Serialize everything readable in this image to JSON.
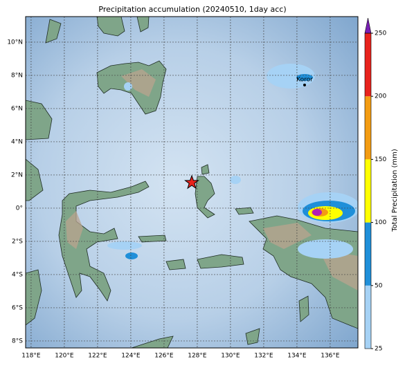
{
  "title": "Precipitation accumulation (20240510, 1day acc)",
  "map": {
    "lon_range": [
      117.67,
      137.67
    ],
    "lat_range": [
      -8.42,
      11.54
    ],
    "lon_ticks": [
      {
        "value": 118,
        "label": "118°E"
      },
      {
        "value": 120,
        "label": "120°E"
      },
      {
        "value": 122,
        "label": "122°E"
      },
      {
        "value": 124,
        "label": "124°E"
      },
      {
        "value": 126,
        "label": "126°E"
      },
      {
        "value": 128,
        "label": "128°E"
      },
      {
        "value": 130,
        "label": "130°E"
      },
      {
        "value": 132,
        "label": "132°E"
      },
      {
        "value": 134,
        "label": "134°E"
      },
      {
        "value": 136,
        "label": "136°E"
      }
    ],
    "lat_ticks": [
      {
        "value": 10,
        "label": "10°N"
      },
      {
        "value": 8,
        "label": "8°N"
      },
      {
        "value": 6,
        "label": "6°N"
      },
      {
        "value": 4,
        "label": "4°N"
      },
      {
        "value": 2,
        "label": "2°N"
      },
      {
        "value": 0,
        "label": "0°"
      },
      {
        "value": -2,
        "label": "2°S"
      },
      {
        "value": -4,
        "label": "4°S"
      },
      {
        "value": -6,
        "label": "6°S"
      },
      {
        "value": -8,
        "label": "8°S"
      }
    ],
    "city": {
      "label": "Koror",
      "lon": 134.46,
      "lat": 7.42
    },
    "star": {
      "lon": 127.67,
      "lat": 1.54
    }
  },
  "colorbar": {
    "label": "Total Precipitation (mm)",
    "ticks": [
      25,
      50,
      100,
      150,
      200,
      250
    ],
    "colors": [
      "#a6d2f5",
      "#1f8fd9",
      "#ffff00",
      "#f39c12",
      "#e8231d"
    ],
    "extend_color": "#7a1fb5"
  }
}
